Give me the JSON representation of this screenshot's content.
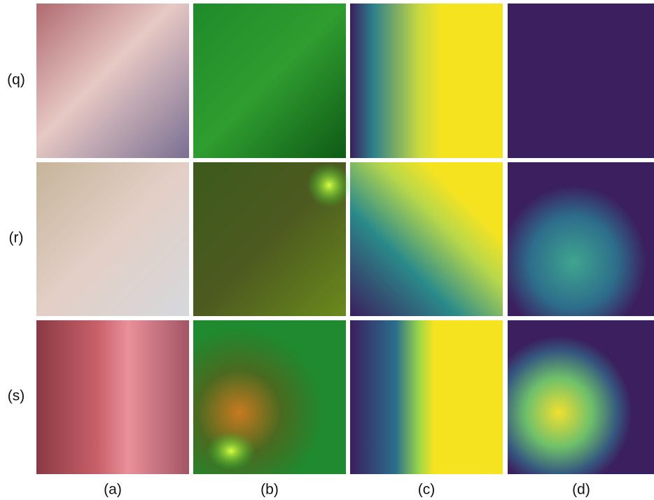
{
  "row_labels": [
    "(q)",
    "(r)",
    "(s)"
  ],
  "column_labels": [
    "(a)",
    "(b)",
    "(c)",
    "(d)"
  ]
}
